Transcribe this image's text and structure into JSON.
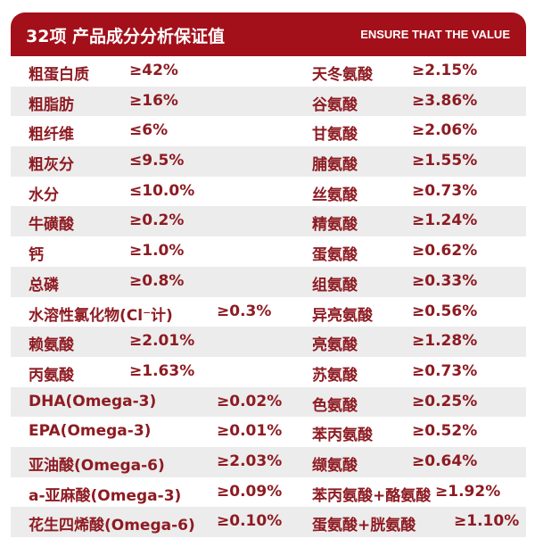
{
  "header": {
    "title": "32项 产品成分分析保证值",
    "subtitle": "ENSURE THAT THE VALUE"
  },
  "rows": [
    {
      "left_name": "粗蛋白质",
      "left_value": "≥42%",
      "right_name": "天冬氨酸",
      "right_value": "≥2.15%"
    },
    {
      "left_name": "粗脂肪",
      "left_value": "≥16%",
      "right_name": "谷氨酸",
      "right_value": "≥3.86%"
    },
    {
      "left_name": "粗纤维",
      "left_value": "≤6%",
      "right_name": "甘氨酸",
      "right_value": "≥2.06%"
    },
    {
      "left_name": "粗灰分",
      "left_value": "≤9.5%",
      "right_name": "脯氨酸",
      "right_value": "≥1.55%"
    },
    {
      "left_name": "水分",
      "left_value": "≤10.0%",
      "right_name": "丝氨酸",
      "right_value": "≥0.73%"
    },
    {
      "left_name": "牛磺酸",
      "left_value": "≥0.2%",
      "right_name": "精氨酸",
      "right_value": "≥1.24%"
    },
    {
      "left_name": "钙",
      "left_value": "≥1.0%",
      "right_name": "蛋氨酸",
      "right_value": "≥0.62%"
    },
    {
      "left_name": "总磷",
      "left_value": "≥0.8%",
      "right_name": "组氨酸",
      "right_value": "≥0.33%"
    },
    {
      "left_name": "水溶性氯化物(Cl⁻计)",
      "left_value": "≥0.3%",
      "right_name": "异亮氨酸",
      "right_value": "≥0.56%"
    },
    {
      "left_name": "赖氨酸",
      "left_value": "≥2.01%",
      "right_name": "亮氨酸",
      "right_value": "≥1.28%"
    },
    {
      "left_name": "丙氨酸",
      "left_value": "≥1.63%",
      "right_name": "苏氨酸",
      "right_value": "≥0.73%"
    },
    {
      "left_name": "DHA(Omega-3)",
      "left_value": "≥0.02%",
      "right_name": "色氨酸",
      "right_value": "≥0.25%"
    },
    {
      "left_name": "EPA(Omega-3)",
      "left_value": "≥0.01%",
      "right_name": "苯丙氨酸",
      "right_value": "≥0.52%"
    },
    {
      "left_name": "亚油酸(Omega-6)",
      "left_value": "≥2.03%",
      "right_name": "缬氨酸",
      "right_value": "≥0.64%"
    },
    {
      "left_name": "a-亚麻酸(Omega-3)",
      "left_value": "≥0.09%",
      "right_name": "苯丙氨酸+酪氨酸",
      "right_value": "≥1.92%"
    },
    {
      "left_name": "花生四烯酸(Omega-6)",
      "left_value": "≥0.10%",
      "right_name": "蛋氨酸+胱氨酸",
      "right_value": "≥1.10%"
    }
  ],
  "colors": {
    "header_bg": "#a3101a",
    "text": "#8e1b22",
    "stripe": "#ececec"
  }
}
